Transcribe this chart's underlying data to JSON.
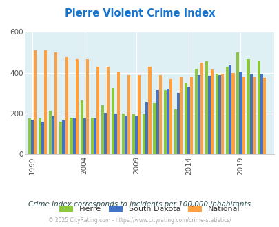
{
  "title": "Pierre Violent Crime Index",
  "title_color": "#1874CD",
  "subtitle": "Crime Index corresponds to incidents per 100,000 inhabitants",
  "subtitle_color": "#2F4F4F",
  "footer": "© 2025 CityRating.com - https://www.cityrating.com/crime-statistics/",
  "footer_color": "#aaaaaa",
  "years": [
    1999,
    2000,
    2001,
    2002,
    2003,
    2004,
    2005,
    2006,
    2007,
    2008,
    2009,
    2010,
    2011,
    2012,
    2013,
    2014,
    2015,
    2016,
    2017,
    2018,
    2019,
    2020,
    2021
  ],
  "pierre": [
    175,
    175,
    215,
    160,
    180,
    265,
    180,
    240,
    325,
    200,
    195,
    195,
    250,
    315,
    220,
    350,
    420,
    455,
    395,
    430,
    500,
    465,
    460
  ],
  "south_dakota": [
    170,
    160,
    185,
    165,
    180,
    175,
    175,
    205,
    200,
    190,
    190,
    255,
    315,
    320,
    300,
    330,
    390,
    385,
    390,
    435,
    405,
    395,
    395
  ],
  "national": [
    510,
    510,
    500,
    475,
    465,
    465,
    430,
    430,
    405,
    390,
    390,
    430,
    390,
    370,
    380,
    380,
    450,
    415,
    395,
    400,
    380,
    380,
    375
  ],
  "pierre_color": "#8DC63F",
  "south_dakota_color": "#4472C4",
  "national_color": "#FFA040",
  "plot_bg_color": "#DFF0F5",
  "ylim": [
    0,
    600
  ],
  "yticks": [
    0,
    200,
    400,
    600
  ],
  "xticks": [
    1999,
    2004,
    2009,
    2014,
    2019
  ],
  "bar_width": 0.27,
  "legend_labels": [
    "Pierre",
    "South Dakota",
    "National"
  ],
  "fig_bg_color": "#ffffff"
}
